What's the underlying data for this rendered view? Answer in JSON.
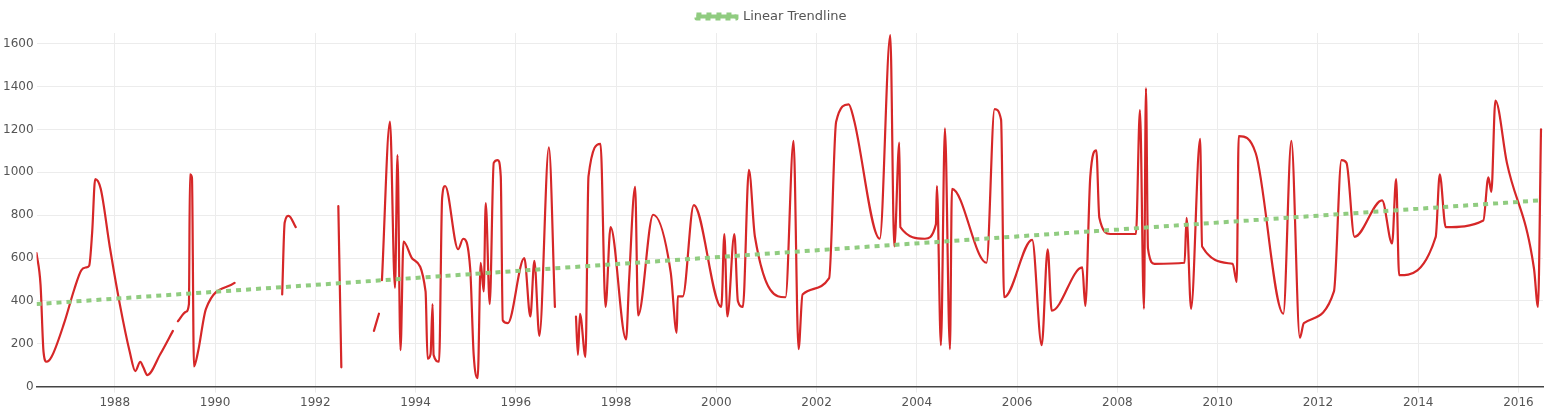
{
  "chart_data": {
    "type": "line",
    "xlim": [
      1986.44,
      2016.49
    ],
    "xticks": [
      1988,
      1990,
      1992,
      1994,
      1996,
      1998,
      2000,
      2002,
      2004,
      2006,
      2008,
      2010,
      2012,
      2014,
      2016
    ],
    "ylim": [
      0,
      1650
    ],
    "yticks": [
      0,
      200,
      400,
      600,
      800,
      1000,
      1200,
      1400,
      1600
    ],
    "grid": true,
    "legend": "top",
    "marker": "none",
    "series": [
      {
        "color": "#d62728",
        "line_style": "solid",
        "x": [
          1986.44,
          1986.52,
          1986.58,
          1986.64,
          1986.74,
          1986.99,
          1987.19,
          1987.33,
          1987.43,
          1987.49,
          1987.55,
          1987.61,
          1987.72,
          1987.9,
          1988.1,
          1988.3,
          1988.41,
          1988.51,
          1988.57,
          1988.65,
          1988.91,
          1989.16,
          1989.21,
          1989.26,
          1989.42,
          1989.48,
          1989.5,
          1989.54,
          1989.58,
          1989.66,
          1989.82,
          1990.39,
          1990.8,
          1991.34,
          1991.39,
          1991.47,
          1991.61,
          1992,
          1992.46,
          1992.52,
          1992.8,
          1993.17,
          1993.27,
          1993.3,
          1993.33,
          1993.49,
          1993.59,
          1993.64,
          1993.7,
          1993.76,
          1993.94,
          1994.2,
          1994.24,
          1994.3,
          1994.34,
          1994.36,
          1994.47,
          1994.53,
          1994.59,
          1994.85,
          1994.95,
          1995.09,
          1995.16,
          1995.24,
          1995.3,
          1995.36,
          1995.4,
          1995.48,
          1995.56,
          1995.64,
          1995.7,
          1995.74,
          1995.84,
          1996.17,
          1996.29,
          1996.37,
          1996.47,
          1996.66,
          1996.78,
          1997,
          1997.2,
          1997.24,
          1997.28,
          1997.39,
          1997.45,
          1997.69,
          1997.79,
          1997.89,
          1998.2,
          1998.26,
          1998.38,
          1998.44,
          1998.74,
          1999.09,
          1999.21,
          1999.23,
          1999.33,
          1999.55,
          2000.1,
          2000.16,
          2000.22,
          2000.36,
          2000.43,
          2000.53,
          2000.65,
          2000.77,
          2001.38,
          2001.54,
          2001.64,
          2001.72,
          2002.25,
          2002.39,
          2002.64,
          2002.74,
          2003.26,
          2003.47,
          2003.55,
          2003.65,
          2003.67,
          2004.16,
          2004.38,
          2004.4,
          2004.48,
          2004.56,
          2004.66,
          2004.7,
          2005.39,
          2005.55,
          2005.68,
          2005.74,
          2006.3,
          2006.49,
          2006.61,
          2006.69,
          2007.3,
          2007.36,
          2007.46,
          2007.58,
          2007.64,
          2007.86,
          2008.37,
          2008.45,
          2008.53,
          2008.57,
          2008.61,
          2008.74,
          2009.34,
          2009.38,
          2009.47,
          2009.65,
          2009.69,
          2010.3,
          2010.38,
          2010.42,
          2010.76,
          2011.31,
          2011.47,
          2011.64,
          2011.72,
          2012.32,
          2012.47,
          2012.57,
          2012.73,
          2013.28,
          2013.48,
          2013.56,
          2013.62,
          2014.35,
          2014.43,
          2014.55,
          2015.3,
          2015.4,
          2015.46,
          2015.54,
          2015.77,
          2016.31,
          2016.39,
          2016.45
        ],
        "values": [
          623,
          475,
          161,
          116,
          139,
          296,
          452,
          542,
          556,
          564,
          721,
          968,
          923,
          654,
          386,
          161,
          72,
          116,
          90,
          54,
          152,
          260,
          null,
          305,
          349,
          385,
          990,
          976,
          94,
          161,
          363,
          484,
          null,
          430,
          766,
          797,
          744,
          null,
          842,
          90,
          null,
          260,
          340,
          null,
          497,
          1236,
          461,
          1080,
          170,
          677,
          596,
          444,
          130,
          152,
          385,
          148,
          116,
          878,
          936,
          641,
          690,
          551,
          148,
          40,
          578,
          444,
          856,
          385,
          1044,
          1057,
          981,
          309,
          296,
          600,
          327,
          587,
          237,
          1116,
          372,
          null,
          327,
          148,
          340,
          139,
          981,
          1133,
          372,
          744,
          220,
          497,
          932,
          332,
          802,
          533,
          251,
          421,
          421,
          847,
          372,
          712,
          327,
          712,
          399,
          372,
          1012,
          699,
          417,
          1147,
          175,
          430,
          506,
          1236,
          1317,
          1250,
          690,
          1640,
          654,
          1138,
          744,
          690,
          757,
          936,
          193,
          1205,
          175,
          923,
          578,
          1295,
          1245,
          417,
          685,
          193,
          641,
          354,
          556,
          376,
          981,
          1102,
          788,
          712,
          712,
          1290,
          363,
          1393,
          645,
          573,
          578,
          788,
          363,
          1156,
          654,
          573,
          488,
          1169,
          1089,
          340,
          1147,
          228,
          296,
          444,
          1057,
          1044,
          699,
          869,
          668,
          968,
          520,
          699,
          990,
          744,
          775,
          977,
          909,
          1335,
          1044,
          551,
          372,
          1200
        ]
      },
      {
        "name": "Linear Trendline",
        "color": "#90cc80",
        "line_style": "dotted",
        "x": [
          1986.44,
          2016.49
        ],
        "values": [
          385,
          870
        ]
      }
    ]
  }
}
